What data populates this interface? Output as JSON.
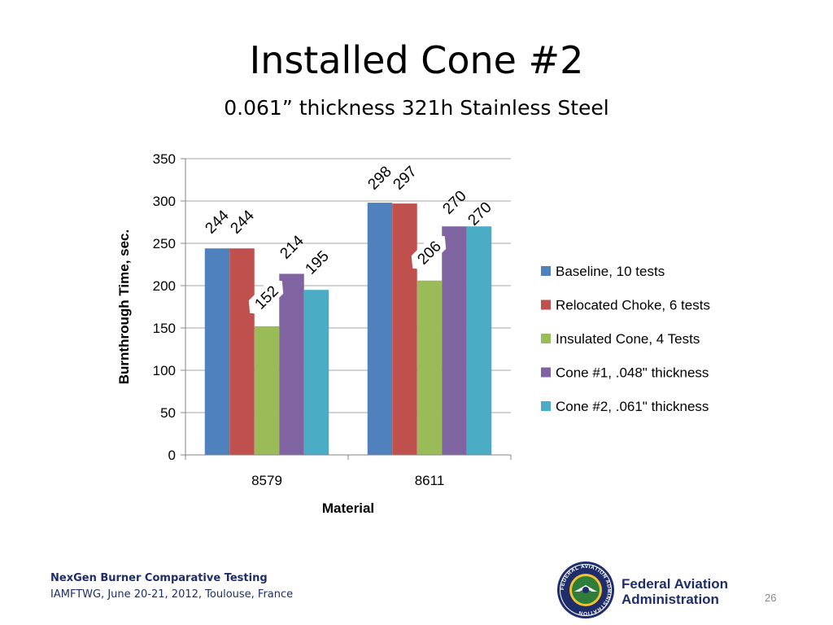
{
  "slide": {
    "title": "Installed Cone #2",
    "subtitle": "0.061” thickness 321h Stainless Steel"
  },
  "footer": {
    "title": "NexGen Burner Comparative Testing",
    "subtitle": "IAMFTWG, June 20-21, 2012, Toulouse, France",
    "org_line1": "Federal Aviation",
    "org_line2": "Administration",
    "seal_text": "FEDERAL AVIATION ADMINISTRATION",
    "page_number": "26"
  },
  "chart_data": {
    "type": "bar",
    "categories": [
      "8579",
      "8611"
    ],
    "series": [
      {
        "name": "Baseline, 10 tests",
        "values": [
          244,
          298
        ],
        "labels": [
          "244",
          "298"
        ],
        "color": "#4f81bd"
      },
      {
        "name": "Relocated Choke, 6 tests",
        "values": [
          244,
          297
        ],
        "labels": [
          "244",
          "297"
        ],
        "color": "#c0504d"
      },
      {
        "name": "Insulated Cone, 4 Tests",
        "values": [
          152,
          206
        ],
        "labels": [
          "152",
          "206"
        ],
        "color": "#9bbb59"
      },
      {
        "name": "Cone #1, .048\" thickness",
        "values": [
          214,
          270
        ],
        "labels": [
          "214",
          "270"
        ],
        "color": "#8064a2"
      },
      {
        "name": "Cone #2, .061\" thickness",
        "values": [
          195,
          270
        ],
        "labels": [
          "195",
          "270"
        ],
        "color": "#4bacc6"
      }
    ],
    "xlabel": "Material",
    "ylabel": "Burnthrough Time, sec.",
    "ylim": [
      0,
      350
    ],
    "yticks": [
      0,
      50,
      100,
      150,
      200,
      250,
      300,
      350
    ],
    "grid": true,
    "legend_position": "right"
  }
}
